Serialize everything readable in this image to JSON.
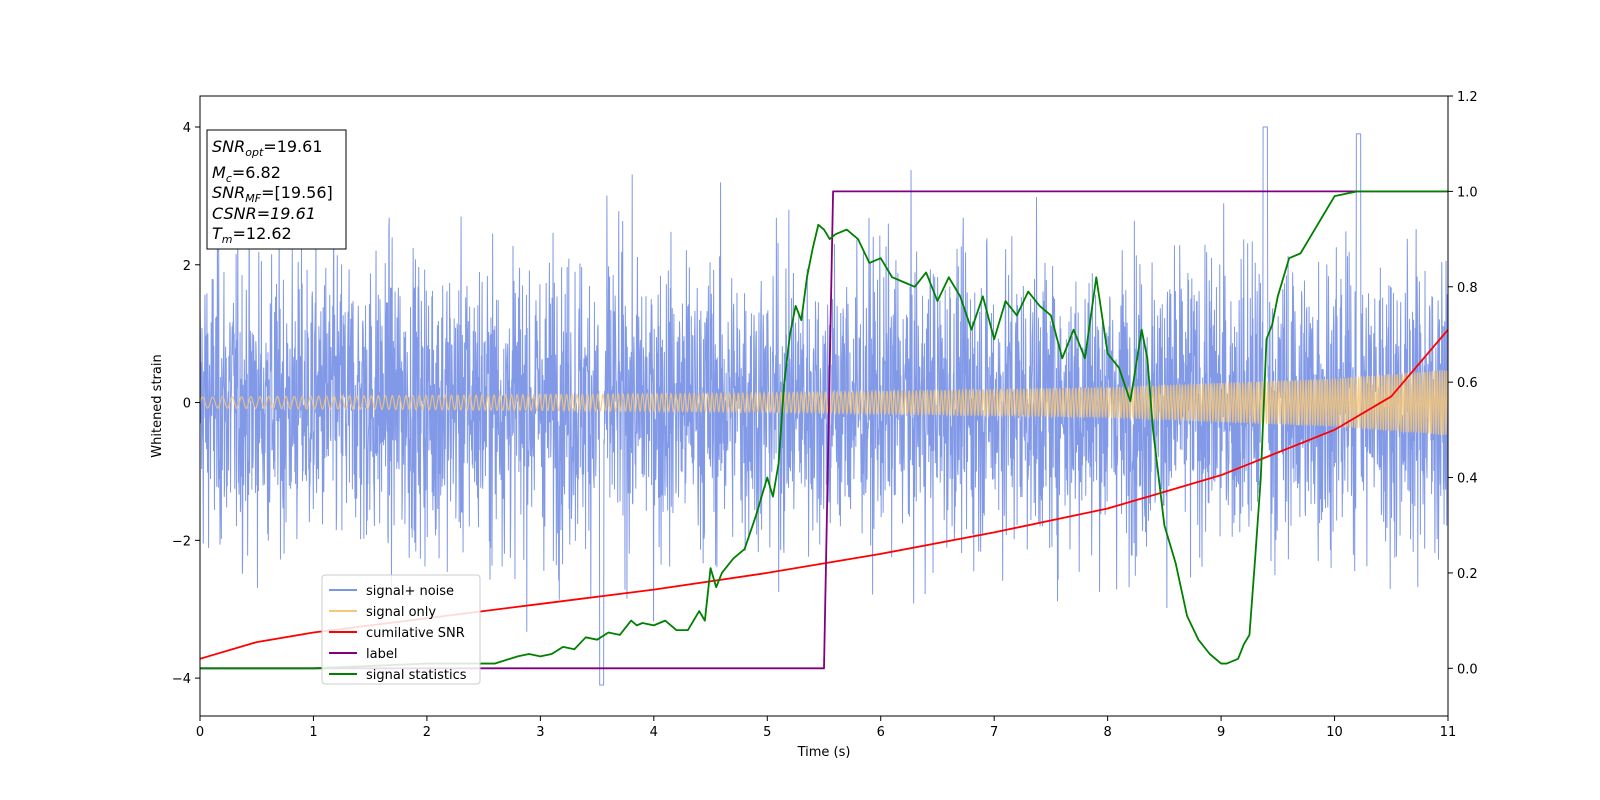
{
  "chart_data": {
    "type": "line",
    "xlabel": "Time (s)",
    "ylabel": "Whitened strain",
    "xlim": [
      0,
      11
    ],
    "ylim_left": [
      -4.55,
      4.45
    ],
    "ylim_right": [
      -0.1,
      1.2
    ],
    "x_ticks": [
      "0",
      "1",
      "2",
      "3",
      "4",
      "5",
      "6",
      "7",
      "8",
      "9",
      "10",
      "11"
    ],
    "y_ticks_left": [
      "4",
      "2",
      "0",
      "−2",
      "−4"
    ],
    "y_ticks_right": [
      "1.2",
      "1.0",
      "0.8",
      "0.6",
      "0.4",
      "0.2",
      "0.0"
    ],
    "grid": false,
    "legend_position": "lower-left",
    "info_box": {
      "line1_main": "SNR",
      "line1_sub": "opt",
      "line1_rest": "=19.61",
      "line2_main": "M",
      "line2_sub": "c",
      "line2_rest": "=6.82",
      "line3_main": "SNR",
      "line3_sub": "MF",
      "line3_rest": "=[19.56]",
      "line4": "CSNR=19.61",
      "line5_main": "T",
      "line5_sub": "m",
      "line5_rest": "=12.62"
    },
    "series": [
      {
        "name": "signal+ noise",
        "axis": "left",
        "color": "#7a94e6",
        "style": "dense noise, typical amplitude ±1.3, peaks up to ~4.0 near t=9.4 and ~3.9 near t=10.2, troughs to ~-4.1 near t=3.5"
      },
      {
        "name": "signal only",
        "axis": "left",
        "color": "#f5c77a",
        "style": "chirp oscillation, amplitude growing",
        "amplitude_points": [
          [
            0,
            0.08
          ],
          [
            5,
            0.14
          ],
          [
            8,
            0.22
          ],
          [
            10,
            0.35
          ],
          [
            11,
            0.48
          ]
        ]
      },
      {
        "name": "cumilative SNR",
        "axis": "right",
        "color": "#ff0000",
        "x": [
          0,
          0.5,
          1,
          2,
          3,
          4,
          5,
          6,
          7,
          8,
          9,
          10,
          10.5,
          11
        ],
        "y": [
          0.02,
          0.055,
          0.075,
          0.105,
          0.135,
          0.165,
          0.2,
          0.24,
          0.285,
          0.335,
          0.405,
          0.5,
          0.57,
          0.71
        ]
      },
      {
        "name": "label",
        "axis": "right",
        "color": "#800080",
        "x": [
          0,
          5.5,
          5.58,
          11
        ],
        "y": [
          0.0,
          0.0,
          1.0,
          1.0
        ]
      },
      {
        "name": "signal statistics",
        "axis": "right",
        "color": "#008000",
        "x": [
          0,
          0.5,
          1.0,
          1.5,
          2.0,
          2.3,
          2.6,
          2.8,
          2.9,
          3.0,
          3.1,
          3.2,
          3.3,
          3.4,
          3.5,
          3.6,
          3.7,
          3.8,
          3.85,
          3.9,
          4.0,
          4.1,
          4.2,
          4.3,
          4.4,
          4.45,
          4.5,
          4.55,
          4.6,
          4.7,
          4.8,
          4.9,
          5.0,
          5.05,
          5.1,
          5.15,
          5.2,
          5.25,
          5.3,
          5.35,
          5.4,
          5.45,
          5.5,
          5.55,
          5.6,
          5.7,
          5.8,
          5.9,
          6.0,
          6.1,
          6.2,
          6.3,
          6.4,
          6.5,
          6.6,
          6.7,
          6.8,
          6.9,
          7.0,
          7.1,
          7.2,
          7.3,
          7.4,
          7.5,
          7.6,
          7.7,
          7.8,
          7.9,
          8.0,
          8.1,
          8.2,
          8.3,
          8.35,
          8.4,
          8.5,
          8.6,
          8.7,
          8.8,
          8.9,
          9.0,
          9.05,
          9.1,
          9.15,
          9.2,
          9.25,
          9.3,
          9.35,
          9.4,
          9.45,
          9.5,
          9.6,
          9.7,
          9.8,
          9.9,
          10.0,
          10.2,
          10.4,
          10.6,
          10.8,
          11.0
        ],
        "y": [
          0.0,
          0.0,
          0.0,
          0.005,
          0.01,
          0.01,
          0.01,
          0.025,
          0.03,
          0.025,
          0.03,
          0.045,
          0.04,
          0.065,
          0.06,
          0.075,
          0.07,
          0.1,
          0.09,
          0.095,
          0.09,
          0.1,
          0.08,
          0.08,
          0.12,
          0.1,
          0.21,
          0.17,
          0.2,
          0.23,
          0.25,
          0.32,
          0.4,
          0.36,
          0.43,
          0.6,
          0.7,
          0.76,
          0.73,
          0.82,
          0.88,
          0.93,
          0.92,
          0.9,
          0.91,
          0.92,
          0.9,
          0.85,
          0.86,
          0.82,
          0.81,
          0.8,
          0.83,
          0.77,
          0.82,
          0.78,
          0.71,
          0.78,
          0.69,
          0.77,
          0.74,
          0.79,
          0.76,
          0.74,
          0.65,
          0.71,
          0.65,
          0.82,
          0.66,
          0.63,
          0.56,
          0.71,
          0.65,
          0.5,
          0.3,
          0.22,
          0.11,
          0.06,
          0.03,
          0.01,
          0.01,
          0.015,
          0.02,
          0.05,
          0.07,
          0.23,
          0.4,
          0.69,
          0.72,
          0.78,
          0.86,
          0.87,
          0.91,
          0.95,
          0.99,
          1.0,
          1.0,
          1.0,
          1.0,
          1.0
        ]
      }
    ]
  }
}
